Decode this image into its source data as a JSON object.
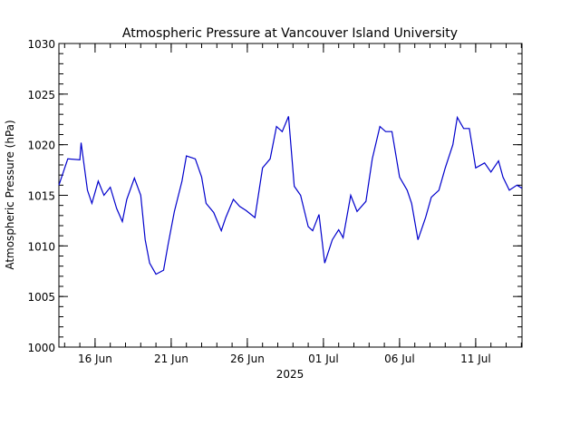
{
  "chart_data": {
    "type": "line",
    "title": "Atmospheric Pressure at Vancouver Island University",
    "ylabel": "Atmospheric Pressure (hPa)",
    "xlabel": "2025",
    "xlim": [
      "2025-06-13T15:00",
      "2025-07-14T01:00"
    ],
    "xticks": [
      {
        "value": "2025-06-16T00:00",
        "label": "16 Jun"
      },
      {
        "value": "2025-06-21T00:00",
        "label": "21 Jun"
      },
      {
        "value": "2025-06-26T00:00",
        "label": "26 Jun"
      },
      {
        "value": "2025-07-01T00:00",
        "label": "01 Jul"
      },
      {
        "value": "2025-07-06T00:00",
        "label": "06 Jul"
      },
      {
        "value": "2025-07-11T00:00",
        "label": "11 Jul"
      }
    ],
    "ylim": [
      1000,
      1030
    ],
    "yticks": [
      1000,
      1005,
      1010,
      1015,
      1020,
      1025,
      1030
    ],
    "minor_ticks": true,
    "x": [
      "2025-06-13T15:00",
      "2025-06-14T05:00",
      "2025-06-15T00:00",
      "2025-06-15T02:00",
      "2025-06-15T12:00",
      "2025-06-15T19:00",
      "2025-06-16T05:00",
      "2025-06-16T14:00",
      "2025-06-17T00:00",
      "2025-06-17T10:00",
      "2025-06-17T19:00",
      "2025-06-18T02:00",
      "2025-06-18T14:00",
      "2025-06-19T00:00",
      "2025-06-19T07:00",
      "2025-06-19T14:00",
      "2025-06-20T00:00",
      "2025-06-20T12:00",
      "2025-06-20T19:00",
      "2025-06-21T05:00",
      "2025-06-21T17:00",
      "2025-06-22T00:00",
      "2025-06-22T14:00",
      "2025-06-23T00:00",
      "2025-06-23T07:00",
      "2025-06-23T19:00",
      "2025-06-24T07:00",
      "2025-06-24T14:00",
      "2025-06-25T02:00",
      "2025-06-25T12:00",
      "2025-06-25T22:00",
      "2025-06-26T12:00",
      "2025-06-27T00:00",
      "2025-06-27T12:00",
      "2025-06-27T22:00",
      "2025-06-28T07:00",
      "2025-06-28T17:00",
      "2025-06-29T02:00",
      "2025-06-29T12:00",
      "2025-06-30T00:00",
      "2025-06-30T07:00",
      "2025-06-30T17:00",
      "2025-07-01T02:00",
      "2025-07-01T14:00",
      "2025-07-02T00:00",
      "2025-07-02T07:00",
      "2025-07-02T19:00",
      "2025-07-03T05:00",
      "2025-07-03T19:00",
      "2025-07-04T05:00",
      "2025-07-04T17:00",
      "2025-07-05T02:00",
      "2025-07-05T12:00",
      "2025-07-06T00:00",
      "2025-07-06T12:00",
      "2025-07-06T19:00",
      "2025-07-07T05:00",
      "2025-07-07T17:00",
      "2025-07-08T02:00",
      "2025-07-08T14:00",
      "2025-07-09T00:00",
      "2025-07-09T12:00",
      "2025-07-09T19:00",
      "2025-07-10T05:00",
      "2025-07-10T14:00",
      "2025-07-11T00:00",
      "2025-07-11T14:00",
      "2025-07-12T00:00",
      "2025-07-12T12:00",
      "2025-07-12T19:00",
      "2025-07-13T05:00",
      "2025-07-13T17:00",
      "2025-07-14T01:00"
    ],
    "series": [
      {
        "name": "Atmospheric Pressure",
        "color": "#0000cc",
        "values": [
          1016.0,
          1018.6,
          1018.5,
          1020.2,
          1015.5,
          1014.2,
          1016.4,
          1015.0,
          1015.8,
          1013.7,
          1012.4,
          1014.6,
          1016.7,
          1015.0,
          1010.6,
          1008.3,
          1007.2,
          1007.6,
          1010.1,
          1013.4,
          1016.4,
          1018.9,
          1018.6,
          1016.8,
          1014.2,
          1013.3,
          1011.5,
          1012.8,
          1014.6,
          1013.9,
          1013.5,
          1012.8,
          1017.7,
          1018.6,
          1021.8,
          1021.3,
          1022.8,
          1015.9,
          1015.0,
          1011.9,
          1011.5,
          1013.1,
          1008.3,
          1010.6,
          1011.6,
          1010.8,
          1015.0,
          1013.4,
          1014.4,
          1018.6,
          1021.8,
          1021.3,
          1021.3,
          1016.8,
          1015.5,
          1014.2,
          1010.6,
          1012.8,
          1014.8,
          1015.5,
          1017.7,
          1020.0,
          1022.7,
          1021.6,
          1021.6,
          1017.7,
          1018.2,
          1017.3,
          1018.4,
          1016.8,
          1015.5,
          1016.0,
          1015.7
        ]
      }
    ]
  }
}
